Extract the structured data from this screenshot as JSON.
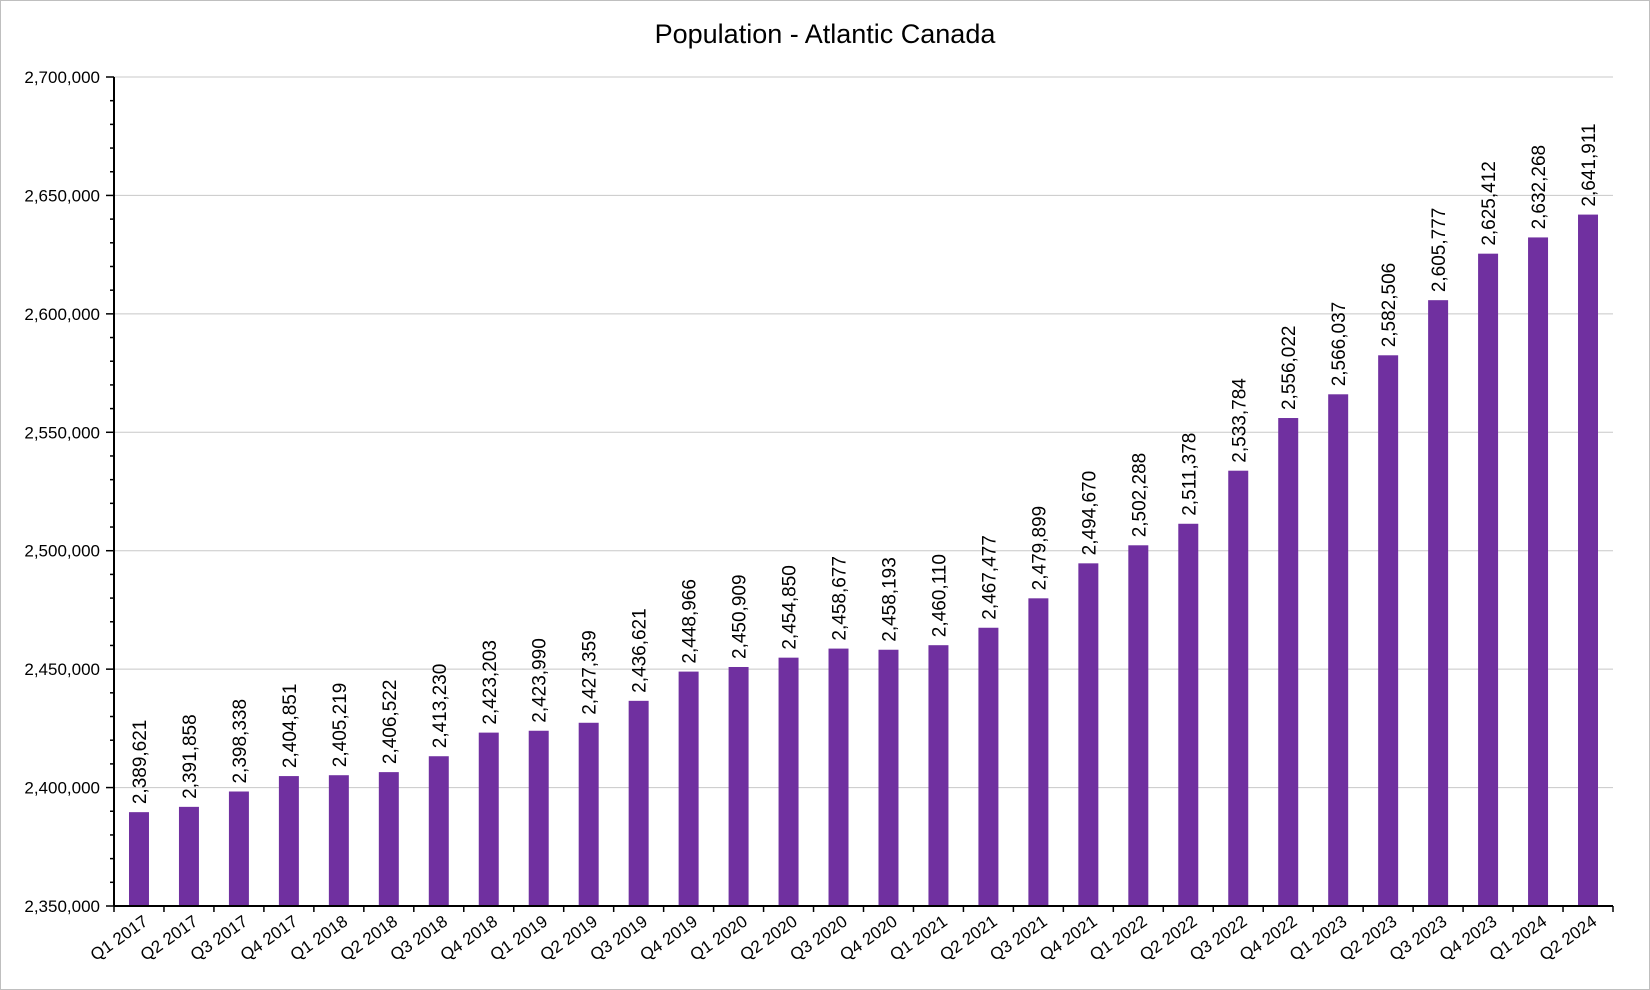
{
  "colors": {
    "bar": "#7030a0",
    "grid": "#c8c8c8",
    "axis": "#000000",
    "frame": "#bfbfbf"
  },
  "chart_data": {
    "type": "bar",
    "title": "Population - Atlantic Canada",
    "xlabel": "",
    "ylabel": "",
    "ylim": [
      2350000,
      2700000
    ],
    "y_ticks": [
      2350000,
      2400000,
      2450000,
      2500000,
      2550000,
      2600000,
      2650000,
      2700000
    ],
    "y_tick_labels": [
      "2,350,000",
      "2,400,000",
      "2,450,000",
      "2,500,000",
      "2,550,000",
      "2,600,000",
      "2,650,000",
      "2,700,000"
    ],
    "grid": true,
    "legend": "none",
    "categories": [
      "Q1 2017",
      "Q2 2017",
      "Q3 2017",
      "Q4 2017",
      "Q1 2018",
      "Q2 2018",
      "Q3 2018",
      "Q4 2018",
      "Q1 2019",
      "Q2 2019",
      "Q3 2019",
      "Q4 2019",
      "Q1 2020",
      "Q2 2020",
      "Q3 2020",
      "Q4 2020",
      "Q1 2021",
      "Q2 2021",
      "Q3 2021",
      "Q4 2021",
      "Q1 2022",
      "Q2 2022",
      "Q3 2022",
      "Q4 2022",
      "Q1 2023",
      "Q2 2023",
      "Q3 2023",
      "Q4 2023",
      "Q1 2024",
      "Q2 2024"
    ],
    "values": [
      2389621,
      2391858,
      2398338,
      2404851,
      2405219,
      2406522,
      2413230,
      2423203,
      2423990,
      2427359,
      2436621,
      2448966,
      2450909,
      2454850,
      2458677,
      2458193,
      2460110,
      2467477,
      2479899,
      2494670,
      2502288,
      2511378,
      2533784,
      2556022,
      2566037,
      2582506,
      2605777,
      2625412,
      2632268,
      2641911
    ],
    "data_labels": [
      "2,389,621",
      "2,391,858",
      "2,398,338",
      "2,404,851",
      "2,405,219",
      "2,406,522",
      "2,413,230",
      "2,423,203",
      "2,423,990",
      "2,427,359",
      "2,436,621",
      "2,448,966",
      "2,450,909",
      "2,454,850",
      "2,458,677",
      "2,458,193",
      "2,460,110",
      "2,467,477",
      "2,479,899",
      "2,494,670",
      "2,502,288",
      "2,511,378",
      "2,533,784",
      "2,556,022",
      "2,566,037",
      "2,582,506",
      "2,605,777",
      "2,625,412",
      "2,632,268",
      "2,641,911"
    ]
  }
}
